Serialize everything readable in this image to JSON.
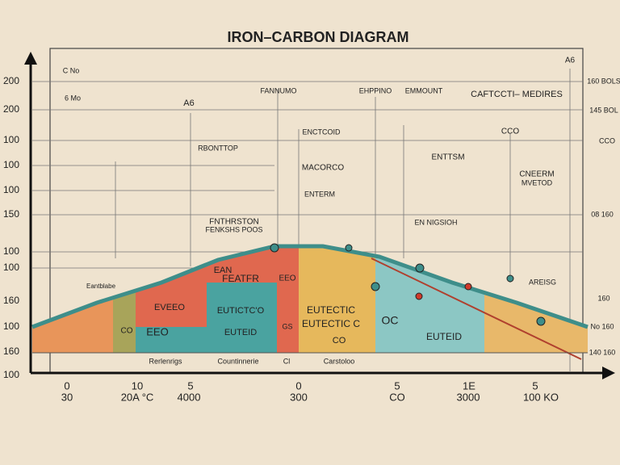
{
  "header": {
    "title": "IRON–CARBON DIAGRAM"
  },
  "y_axis_labels": [
    "200",
    "200",
    "100",
    "100",
    "100",
    "150",
    "100",
    "100",
    "160",
    "100",
    "160",
    "100"
  ],
  "right_labels": [
    "160 BOLS",
    "145 BOL",
    "CCO",
    "08 160",
    "160",
    "No 160",
    "140 160"
  ],
  "x_axis_labels_top": [
    "0",
    "10",
    "5",
    "0",
    "5",
    "1E",
    "5"
  ],
  "x_axis_labels_bottom": [
    "30",
    "20A °C",
    "4000",
    "300",
    "CO",
    "3000",
    "100 KO"
  ],
  "annotations": [
    "C No",
    "6 Mo",
    "A6",
    "FANNUMO",
    "EHPPINO",
    "EMMOUNT",
    "CAFTCCTI– MEDIRES",
    "ENCTCOID",
    "RBONTTOP",
    "MACORCO",
    "ENTTSM",
    "CNEERM",
    "MVETOD",
    "ENTERM",
    "FNTHRSTON",
    "FENKSHS POOS",
    "EN NIGSIOH",
    "Eantblabe",
    "EAN",
    "FEATFR",
    "EVEEO",
    "EEO",
    "CO",
    "EUTICTC'O",
    "EUTEID",
    "EEO",
    "GS",
    "EUTECTIC",
    "EUTECTIC C",
    "CO",
    "OC",
    "EUTEID",
    "AREISG",
    "Rerlenrigs",
    "Countinnerie",
    "Cl",
    "Carstoloo",
    "A6",
    "CCO"
  ]
}
